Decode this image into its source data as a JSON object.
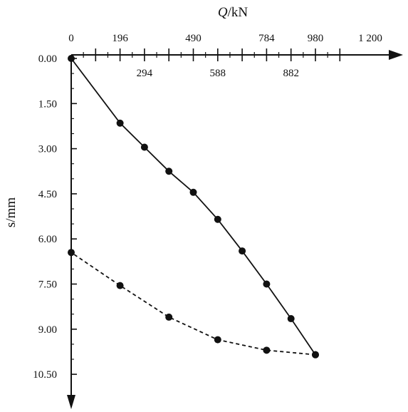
{
  "chart_data": {
    "type": "line",
    "x_axis": {
      "title_var": "Q",
      "title_unit": "/kN",
      "range": [
        0,
        1300
      ],
      "ticks_above": [
        {
          "value": 0,
          "label": "0"
        },
        {
          "value": 196,
          "label": "196"
        },
        {
          "value": 490,
          "label": "490"
        },
        {
          "value": 784,
          "label": "784"
        },
        {
          "value": 980,
          "label": "980"
        },
        {
          "value": 1200,
          "label": "1 200"
        }
      ],
      "ticks_below": [
        {
          "value": 294,
          "label": "294"
        },
        {
          "value": 588,
          "label": "588"
        },
        {
          "value": 882,
          "label": "882"
        }
      ],
      "major_ticks": [
        98,
        196,
        294,
        392,
        490,
        588,
        686,
        784,
        882,
        980,
        1078
      ]
    },
    "y_axis": {
      "title": "s/mm",
      "range": [
        0,
        10.5
      ],
      "inverted": true,
      "tick_labels": [
        "0.00",
        "1.50",
        "3.00",
        "4.50",
        "6.00",
        "7.50",
        "9.00",
        "10.50"
      ],
      "tick_values": [
        0,
        1.5,
        3.0,
        4.5,
        6.0,
        7.5,
        9.0,
        10.5
      ]
    },
    "series": [
      {
        "style": "solid",
        "points": [
          {
            "x": 0,
            "y": 0.0
          },
          {
            "x": 196,
            "y": 2.15
          },
          {
            "x": 294,
            "y": 2.95
          },
          {
            "x": 392,
            "y": 3.75
          },
          {
            "x": 490,
            "y": 4.45
          },
          {
            "x": 588,
            "y": 5.35
          },
          {
            "x": 686,
            "y": 6.4
          },
          {
            "x": 784,
            "y": 7.5
          },
          {
            "x": 882,
            "y": 8.65
          },
          {
            "x": 980,
            "y": 9.85
          }
        ]
      },
      {
        "style": "dashed",
        "points": [
          {
            "x": 980,
            "y": 9.85
          },
          {
            "x": 784,
            "y": 9.7
          },
          {
            "x": 588,
            "y": 9.35
          },
          {
            "x": 392,
            "y": 8.6
          },
          {
            "x": 196,
            "y": 7.55
          },
          {
            "x": 0,
            "y": 6.45
          }
        ]
      }
    ],
    "grid": false,
    "legend": "none"
  }
}
